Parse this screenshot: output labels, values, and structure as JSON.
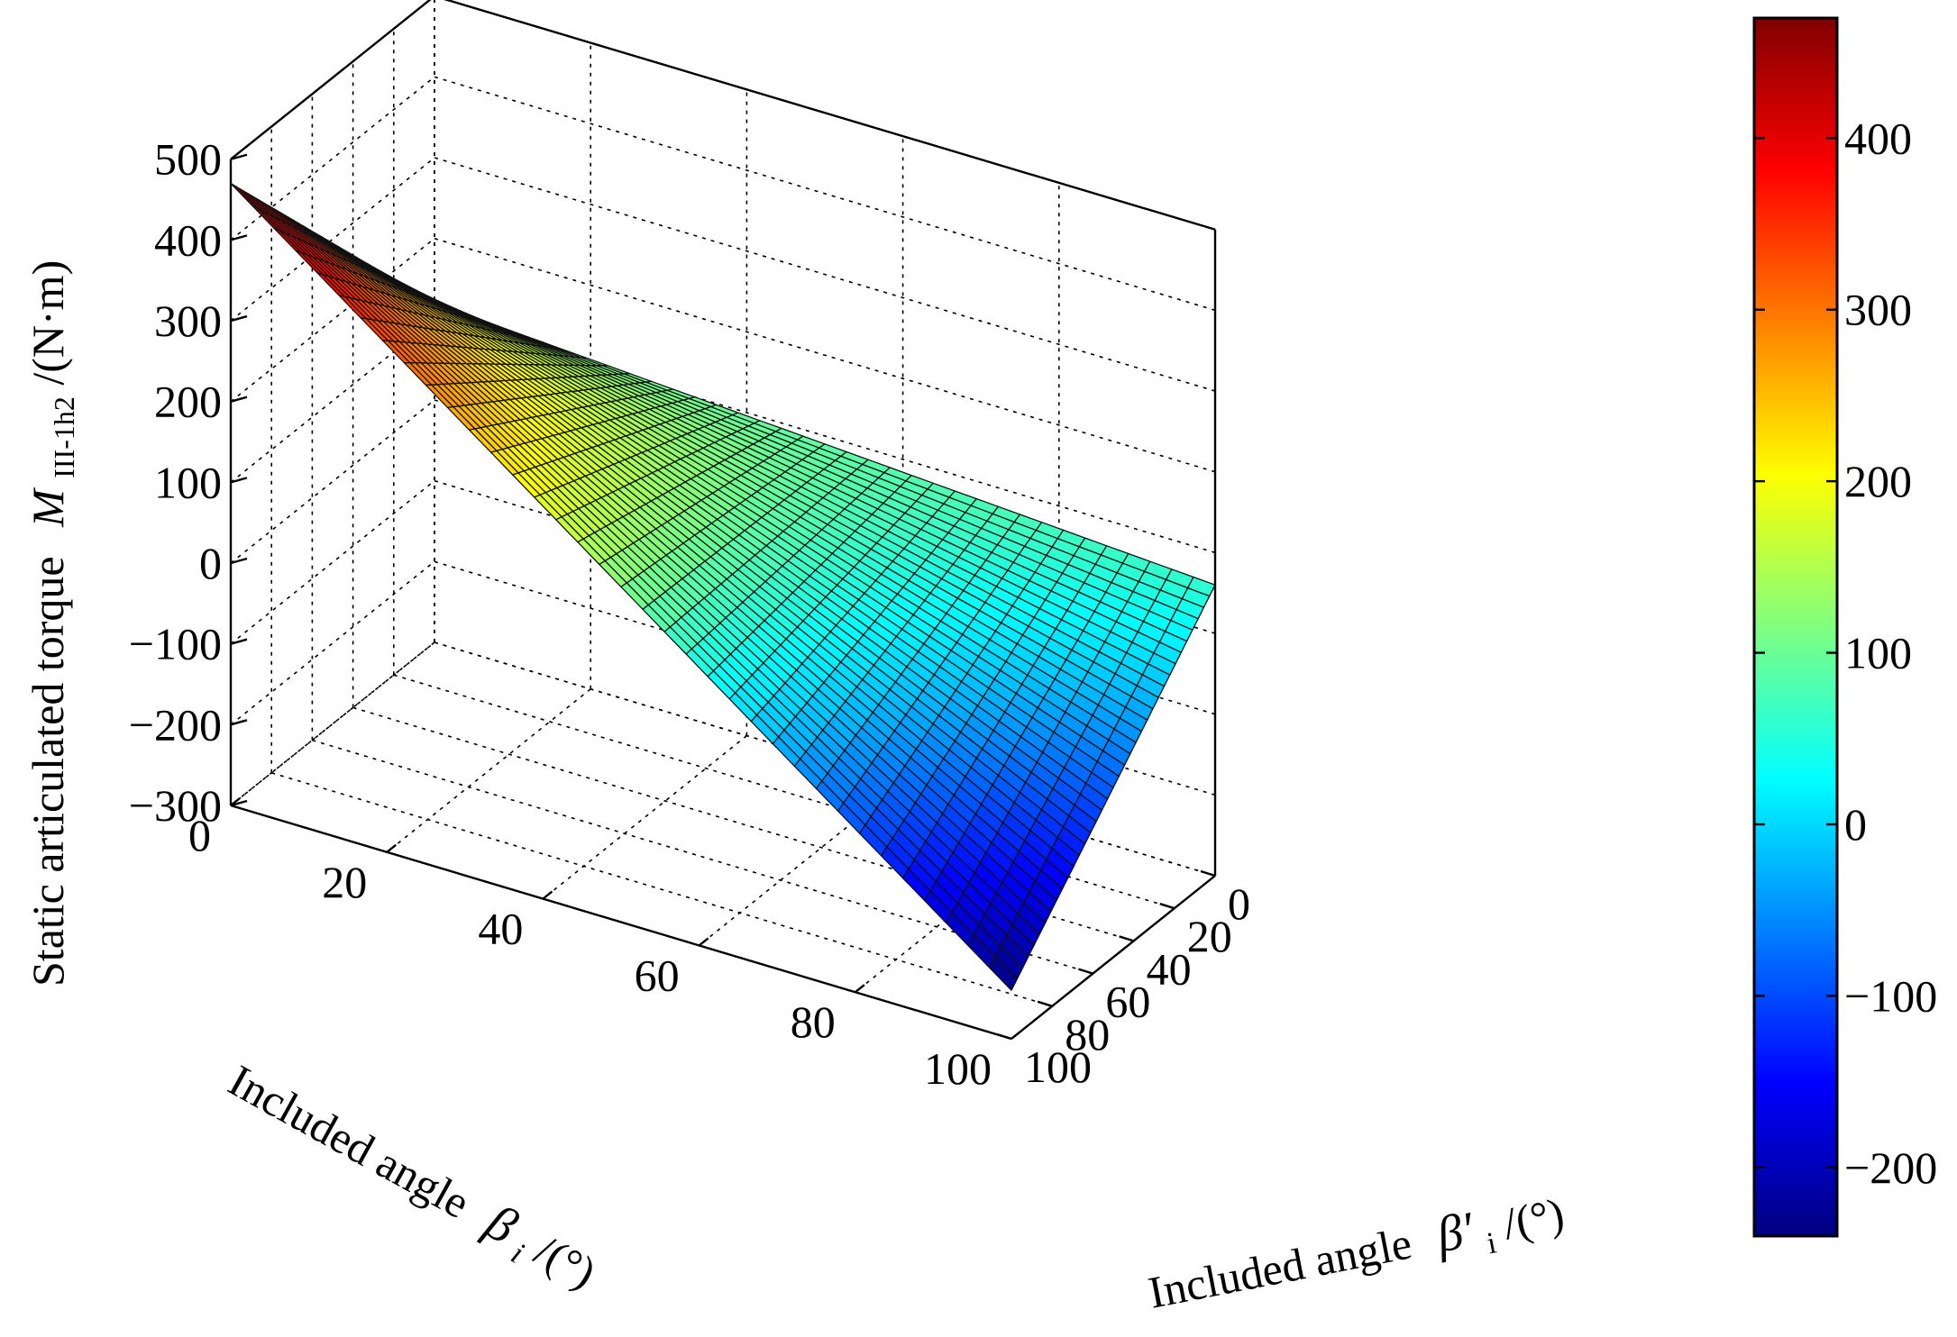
{
  "chart_data": {
    "type": "surface",
    "zlabel_text": "Static articulated torque",
    "zlabel_symbol": "M",
    "zlabel_subscript": "III-1h2",
    "zlabel_unit": "/(N·m)",
    "xlabel_text": "Included angle",
    "xlabel_symbol": "β",
    "xlabel_subscript": "i",
    "xlabel_unit": "/(°)",
    "ylabel_text": "Included angle",
    "ylabel_symbol": "β′",
    "ylabel_subscript": "i",
    "ylabel_unit": "/(°)",
    "x_ticks": [
      "0",
      "20",
      "40",
      "60",
      "80",
      "100"
    ],
    "y_ticks": [
      "0",
      "20",
      "40",
      "60",
      "80",
      "100"
    ],
    "z_ticks": [
      "500",
      "400",
      "300",
      "200",
      "100",
      "0",
      "−100",
      "−200",
      "−300"
    ],
    "colorbar_ticks": [
      "400",
      "300",
      "200",
      "100",
      "0",
      "−100",
      "−200"
    ],
    "xlim": [
      0,
      100
    ],
    "ylim": [
      0,
      100
    ],
    "zlim": [
      -300,
      500
    ],
    "colorbar_range": [
      -240,
      470
    ],
    "colormap": "jet",
    "grid": true,
    "surface_corners": [
      {
        "beta_i": 100,
        "beta_i_prime": 100,
        "torque": -240
      },
      {
        "beta_i": 0,
        "beta_i_prime": 100,
        "torque": 470
      },
      {
        "beta_i": 0,
        "beta_i_prime": 0,
        "torque": 120
      },
      {
        "beta_i": 100,
        "beta_i_prime": 0,
        "torque": 60
      }
    ]
  }
}
